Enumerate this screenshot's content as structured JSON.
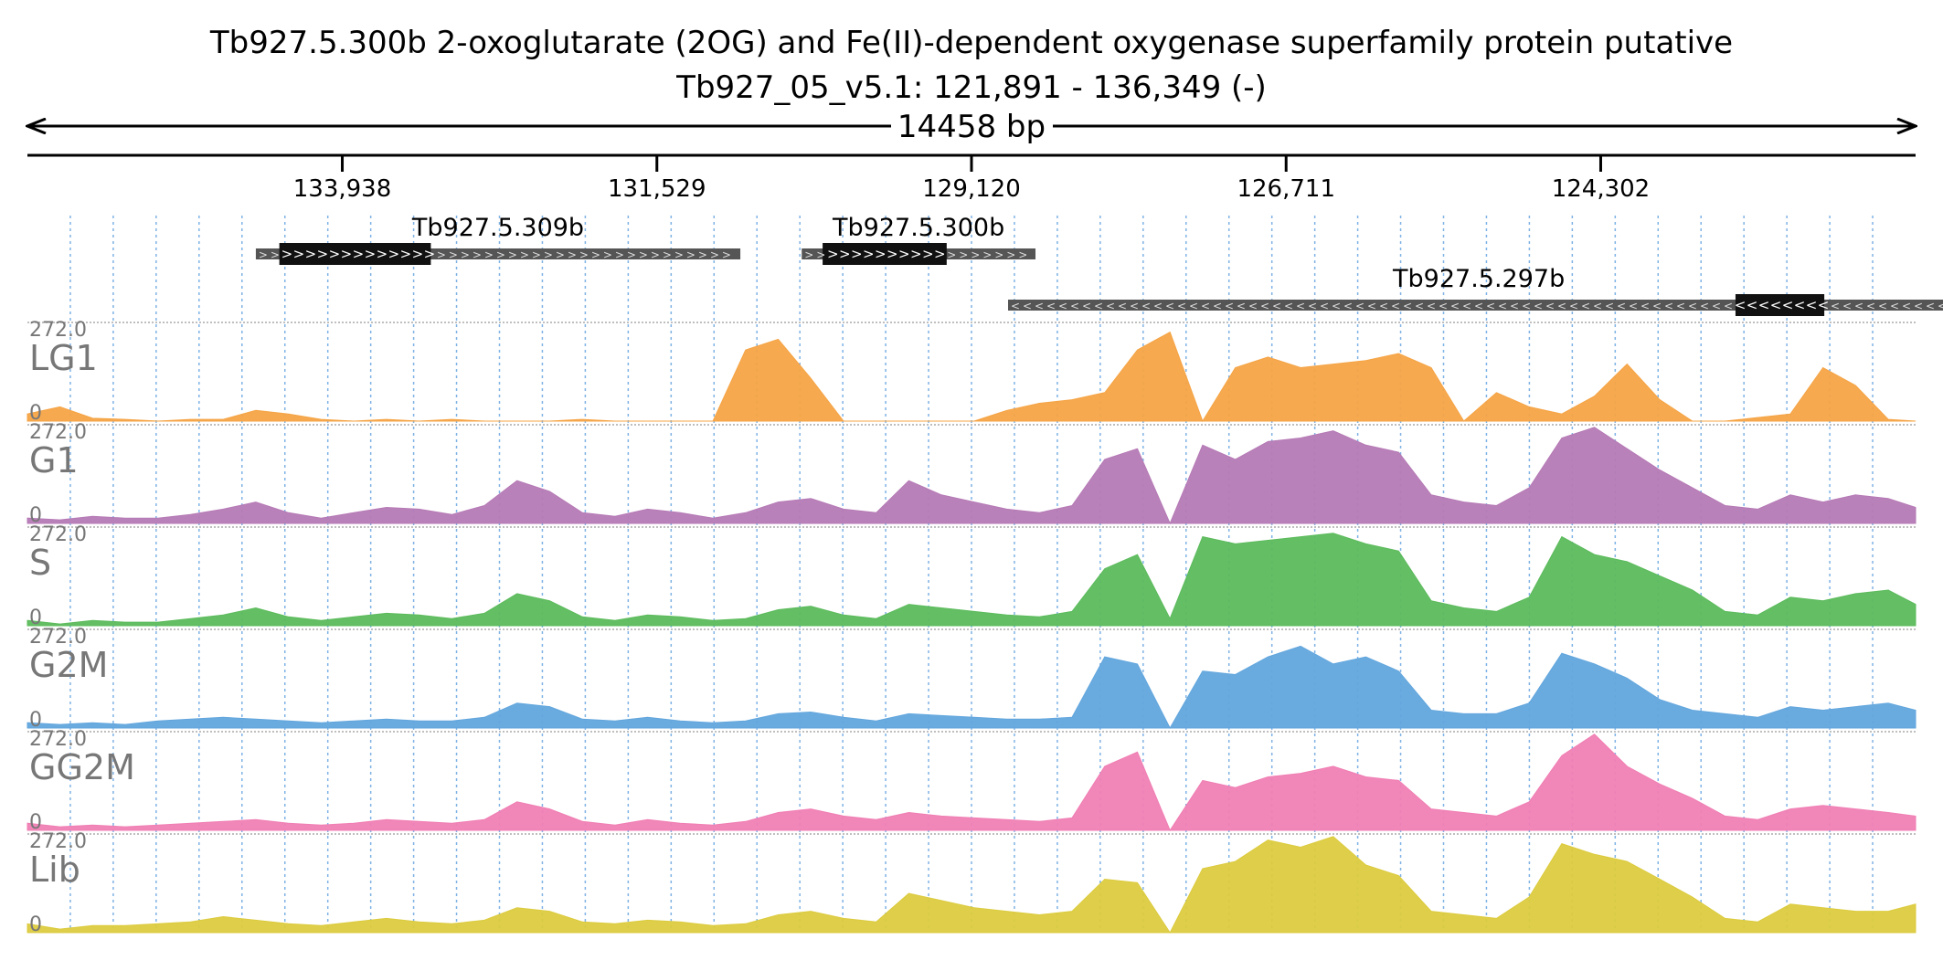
{
  "header": {
    "title_line1": "Tb927.5.300b  2-oxoglutarate (2OG) and Fe(II)-dependent oxygenase superfamily protein  putative",
    "title_line2": "Tb927_05_v5.1: 121,891 - 136,349 (-)",
    "span_label": "14458 bp"
  },
  "axis": {
    "start": 136349,
    "end": 121891,
    "tick_labels": [
      "133,938",
      "131,529",
      "129,120",
      "126,711",
      "124,302"
    ],
    "tick_values": [
      133938,
      131529,
      129120,
      126711,
      124302
    ],
    "grid_color": "#7fb2e5"
  },
  "genes": [
    {
      "name": "Tb927.5.309b",
      "strand": "+",
      "start": 134600,
      "end": 130890,
      "cds_start": 134420,
      "cds_end": 133260
    },
    {
      "name": "Tb927.5.300b",
      "strand": "+",
      "start": 130420,
      "end": 128630,
      "cds_start": 130260,
      "cds_end": 129310
    },
    {
      "name": "Tb927.5.297b",
      "strand": "-",
      "start": 128840,
      "end": 121630,
      "cds_start": 123270,
      "cds_end": 122590
    }
  ],
  "chart_data": {
    "type": "area",
    "title": "Tb927.5.300b  2-oxoglutarate (2OG) and Fe(II)-dependent oxygenase superfamily protein  putative",
    "xlabel": "14458 bp",
    "x_range": [
      136349,
      121891
    ],
    "ylim": [
      0,
      272.0
    ],
    "y_max_label": "272.0",
    "y_min_label": "0",
    "series": [
      {
        "name": "LG1",
        "color": "#f5a446",
        "x": [
          136349,
          136100,
          135850,
          135600,
          135350,
          135100,
          134850,
          134600,
          134350,
          134100,
          133850,
          133600,
          133350,
          133100,
          132850,
          132600,
          132350,
          132100,
          131850,
          131600,
          131350,
          131100,
          130850,
          130600,
          130350,
          130100,
          129850,
          129600,
          129350,
          129100,
          128850,
          128600,
          128350,
          128100,
          127850,
          127600,
          127350,
          127100,
          126850,
          126600,
          126350,
          126100,
          125850,
          125600,
          125350,
          125100,
          124850,
          124600,
          124350,
          124100,
          123850,
          123600,
          123350,
          123100,
          122850,
          122600,
          122350,
          122100,
          121891
        ],
        "values": [
          20,
          40,
          8,
          5,
          0,
          5,
          5,
          30,
          20,
          5,
          0,
          5,
          0,
          5,
          0,
          0,
          0,
          5,
          0,
          0,
          0,
          0,
          200,
          230,
          120,
          0,
          0,
          0,
          0,
          0,
          30,
          50,
          60,
          80,
          200,
          250,
          0,
          150,
          180,
          150,
          160,
          170,
          190,
          150,
          0,
          80,
          40,
          20,
          70,
          160,
          60,
          0,
          0,
          10,
          20,
          150,
          100,
          5,
          0
        ]
      },
      {
        "name": "G1",
        "color": "#b57ab5",
        "x": [
          136349,
          136100,
          135850,
          135600,
          135350,
          135100,
          134850,
          134600,
          134350,
          134100,
          133850,
          133600,
          133350,
          133100,
          132850,
          132600,
          132350,
          132100,
          131850,
          131600,
          131350,
          131100,
          130850,
          130600,
          130350,
          130100,
          129850,
          129600,
          129350,
          129100,
          128850,
          128600,
          128350,
          128100,
          127850,
          127600,
          127350,
          127100,
          126850,
          126600,
          126350,
          126100,
          125850,
          125600,
          125350,
          125100,
          124850,
          124600,
          124350,
          124100,
          123850,
          123600,
          123350,
          123100,
          122850,
          122600,
          122350,
          122100,
          121891
        ],
        "values": [
          15,
          10,
          20,
          15,
          15,
          25,
          40,
          60,
          30,
          15,
          30,
          45,
          40,
          25,
          50,
          120,
          90,
          30,
          20,
          40,
          30,
          15,
          30,
          60,
          70,
          40,
          30,
          120,
          80,
          60,
          40,
          30,
          50,
          180,
          210,
          0,
          220,
          180,
          230,
          240,
          260,
          220,
          200,
          80,
          60,
          50,
          100,
          240,
          270,
          210,
          150,
          100,
          50,
          40,
          80,
          60,
          80,
          70,
          45
        ]
      },
      {
        "name": "S",
        "color": "#5cbb5c",
        "x": [
          136349,
          136100,
          135850,
          135600,
          135350,
          135100,
          134850,
          134600,
          134350,
          134100,
          133850,
          133600,
          133350,
          133100,
          132850,
          132600,
          132350,
          132100,
          131850,
          131600,
          131350,
          131100,
          130850,
          130600,
          130350,
          130100,
          129850,
          129600,
          129350,
          129100,
          128850,
          128600,
          128350,
          128100,
          127850,
          127600,
          127350,
          127100,
          126850,
          126600,
          126350,
          126100,
          125850,
          125600,
          125350,
          125100,
          124850,
          124600,
          124350,
          124100,
          123850,
          123600,
          123350,
          123100,
          122850,
          122600,
          122350,
          122100,
          121891
        ],
        "values": [
          15,
          5,
          15,
          10,
          10,
          20,
          30,
          50,
          25,
          15,
          25,
          35,
          30,
          20,
          35,
          90,
          70,
          25,
          15,
          30,
          25,
          15,
          20,
          45,
          55,
          30,
          20,
          60,
          50,
          40,
          30,
          25,
          40,
          160,
          200,
          20,
          250,
          230,
          240,
          250,
          260,
          230,
          210,
          70,
          50,
          40,
          80,
          250,
          200,
          180,
          140,
          100,
          40,
          30,
          80,
          70,
          90,
          100,
          60
        ]
      },
      {
        "name": "G2M",
        "color": "#62a6dd",
        "x": [
          136349,
          136100,
          135850,
          135600,
          135350,
          135100,
          134850,
          134600,
          134350,
          134100,
          133850,
          133600,
          133350,
          133100,
          132850,
          132600,
          132350,
          132100,
          131850,
          131600,
          131350,
          131100,
          130850,
          130600,
          130350,
          130100,
          129850,
          129600,
          129350,
          129100,
          128850,
          128600,
          128350,
          128100,
          127850,
          127600,
          127350,
          127100,
          126850,
          126600,
          126350,
          126100,
          125850,
          125600,
          125350,
          125100,
          124850,
          124600,
          124350,
          124100,
          123850,
          123600,
          123350,
          123100,
          122850,
          122600,
          122350,
          122100,
          121891
        ],
        "values": [
          15,
          10,
          15,
          10,
          20,
          25,
          30,
          25,
          20,
          15,
          20,
          25,
          20,
          20,
          30,
          70,
          60,
          25,
          20,
          30,
          20,
          15,
          20,
          40,
          45,
          30,
          20,
          40,
          35,
          30,
          25,
          25,
          30,
          200,
          180,
          0,
          160,
          150,
          200,
          230,
          180,
          200,
          160,
          50,
          40,
          40,
          70,
          210,
          180,
          140,
          80,
          50,
          40,
          30,
          60,
          50,
          60,
          70,
          50
        ]
      },
      {
        "name": "GG2M",
        "color": "#f07fb4",
        "x": [
          136349,
          136100,
          135850,
          135600,
          135350,
          135100,
          134850,
          134600,
          134350,
          134100,
          133850,
          133600,
          133350,
          133100,
          132850,
          132600,
          132350,
          132100,
          131850,
          131600,
          131350,
          131100,
          130850,
          130600,
          130350,
          130100,
          129850,
          129600,
          129350,
          129100,
          128850,
          128600,
          128350,
          128100,
          127850,
          127600,
          127350,
          127100,
          126850,
          126600,
          126350,
          126100,
          125850,
          125600,
          125350,
          125100,
          124850,
          124600,
          124350,
          124100,
          123850,
          123600,
          123350,
          123100,
          122850,
          122600,
          122350,
          122100,
          121891
        ],
        "values": [
          20,
          10,
          15,
          10,
          15,
          20,
          25,
          30,
          20,
          15,
          20,
          30,
          25,
          20,
          30,
          80,
          60,
          25,
          15,
          30,
          20,
          15,
          25,
          50,
          60,
          40,
          30,
          50,
          40,
          35,
          30,
          25,
          35,
          180,
          220,
          0,
          140,
          120,
          150,
          160,
          180,
          150,
          140,
          60,
          50,
          40,
          80,
          210,
          270,
          180,
          130,
          90,
          40,
          30,
          60,
          70,
          60,
          50,
          40
        ]
      },
      {
        "name": "Lib",
        "color": "#dccb3f",
        "x": [
          136349,
          136100,
          135850,
          135600,
          135350,
          135100,
          134850,
          134600,
          134350,
          134100,
          133850,
          133600,
          133350,
          133100,
          132850,
          132600,
          132350,
          132100,
          131850,
          131600,
          131350,
          131100,
          130850,
          130600,
          130350,
          130100,
          129850,
          129600,
          129350,
          129100,
          128850,
          128600,
          128350,
          128100,
          127850,
          127600,
          127350,
          127100,
          126850,
          126600,
          126350,
          126100,
          125850,
          125600,
          125350,
          125100,
          124850,
          124600,
          124350,
          124100,
          123850,
          123600,
          123350,
          123100,
          122850,
          122600,
          122350,
          122100,
          121891
        ],
        "values": [
          25,
          10,
          20,
          20,
          25,
          30,
          45,
          35,
          25,
          20,
          30,
          40,
          30,
          25,
          35,
          70,
          60,
          30,
          25,
          35,
          30,
          20,
          25,
          50,
          60,
          40,
          30,
          110,
          90,
          70,
          60,
          50,
          60,
          150,
          140,
          0,
          180,
          200,
          260,
          240,
          270,
          190,
          160,
          60,
          50,
          40,
          100,
          250,
          220,
          200,
          150,
          100,
          40,
          30,
          80,
          70,
          60,
          60,
          80
        ]
      }
    ]
  }
}
